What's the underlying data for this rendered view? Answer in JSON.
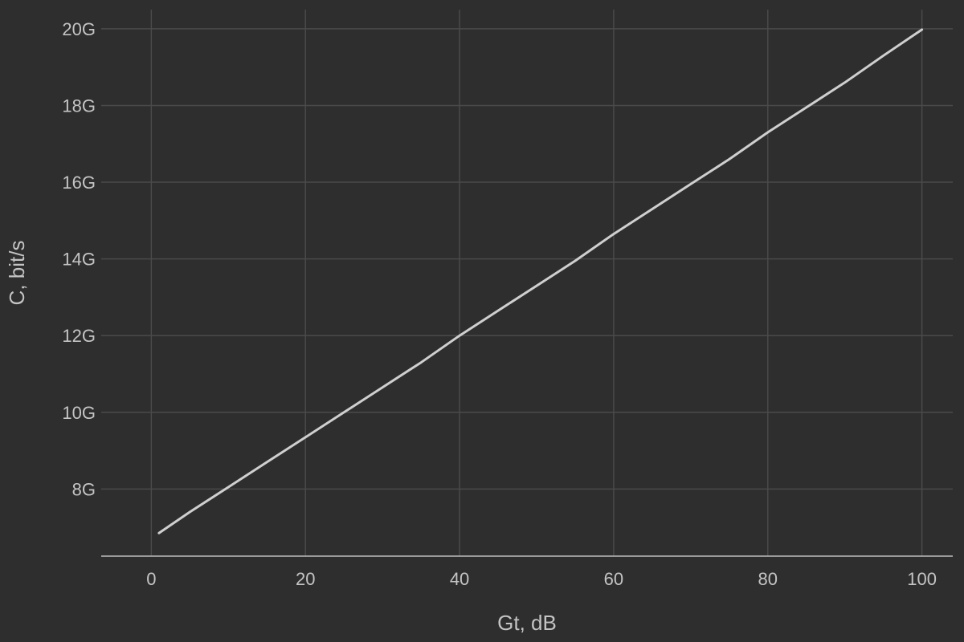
{
  "chart_data": {
    "type": "line",
    "title": "",
    "xlabel": "Gt, dB",
    "ylabel": "C, bit/s",
    "xlim": [
      -6.5,
      104
    ],
    "ylim": [
      6250000000.0,
      20500000000.0
    ],
    "x_ticks": [
      0,
      20,
      40,
      60,
      80,
      100
    ],
    "x_tick_labels": [
      "0",
      "20",
      "40",
      "60",
      "80",
      "100"
    ],
    "y_ticks": [
      8000000000.0,
      10000000000.0,
      12000000000.0,
      14000000000.0,
      16000000000.0,
      18000000000.0,
      20000000000.0
    ],
    "y_tick_labels": [
      "8G",
      "10G",
      "12G",
      "14G",
      "16G",
      "18G",
      "20G"
    ],
    "grid": true,
    "legend": "none",
    "series": [
      {
        "x": [
          1,
          5,
          10,
          15,
          20,
          25,
          30,
          35,
          40,
          45,
          50,
          55,
          60,
          65,
          70,
          75,
          80,
          85,
          90,
          95,
          100
        ],
        "y": [
          6850000000.0,
          7400000000.0,
          8050000000.0,
          8700000000.0,
          9350000000.0,
          10000000000.0,
          10650000000.0,
          11300000000.0,
          12000000000.0,
          12650000000.0,
          13300000000.0,
          13950000000.0,
          14650000000.0,
          15300000000.0,
          15950000000.0,
          16600000000.0,
          17300000000.0,
          17950000000.0,
          18600000000.0,
          19300000000.0,
          19980000000.0
        ]
      }
    ],
    "colors": {
      "background": "#2e2e2e",
      "grid": "#4a4a4a",
      "axis": "#bdbdbd",
      "line": "#cfcfcf",
      "text": "#c4c4c4"
    }
  }
}
